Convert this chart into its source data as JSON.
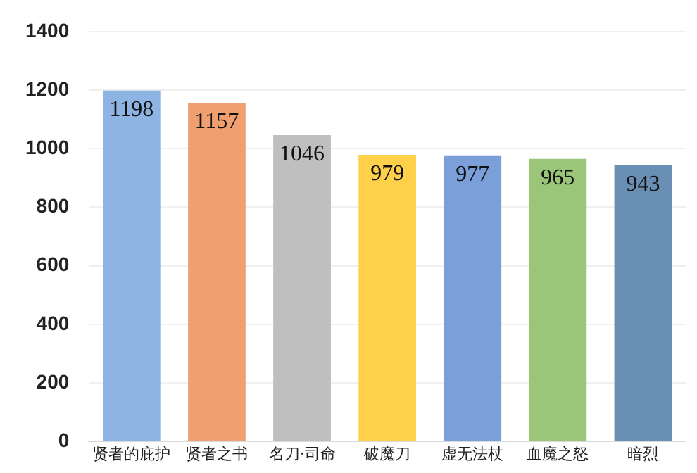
{
  "chart_data": {
    "type": "bar",
    "categories": [
      "贤者的庇护",
      "贤者之书",
      "名刀·司命",
      "破魔刀",
      "虚无法杖",
      "血魔之怒",
      "暗烈"
    ],
    "values": [
      1198,
      1157,
      1046,
      979,
      977,
      965,
      943
    ],
    "colors": [
      "#8db4e2",
      "#f0a070",
      "#bfbfbf",
      "#ffd04a",
      "#7b9fd9",
      "#9bc67a",
      "#6a8fb5"
    ],
    "ylim": [
      0,
      1400
    ],
    "yticks": [
      0,
      200,
      400,
      600,
      800,
      1000,
      1200,
      1400
    ],
    "grid": "y",
    "data_labels": true
  }
}
